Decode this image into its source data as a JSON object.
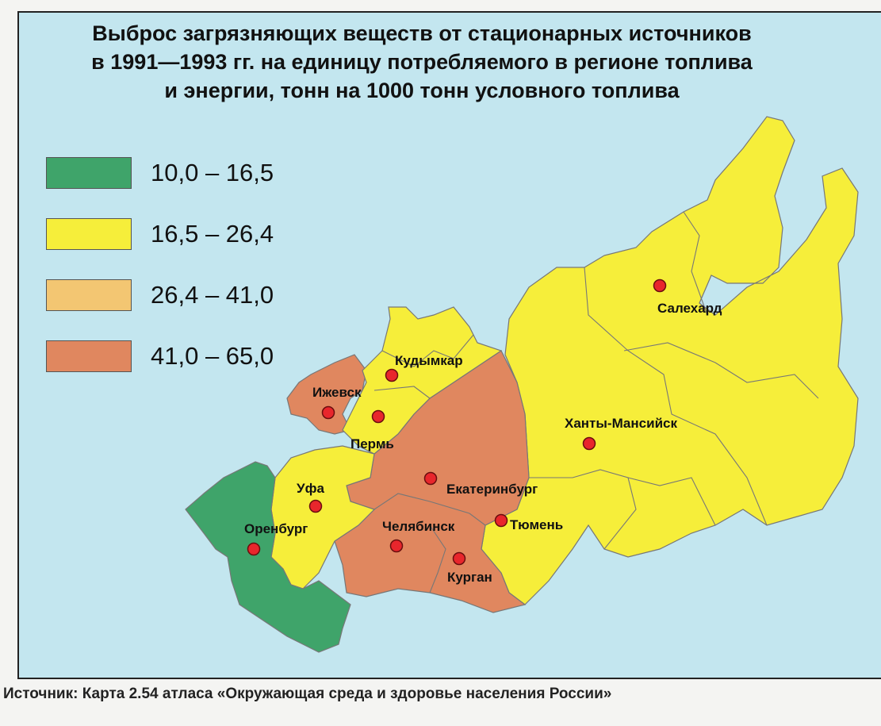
{
  "title": {
    "line1": "Выброс загрязняющих веществ от стационарных источников",
    "line2": "в 1991—1993 гг. на единицу потребляемого в регионе топлива",
    "line3": "и энергии, тонн на 1000 тонн условного топлива"
  },
  "legend": [
    {
      "label": "10,0 – 16,5",
      "color": "#3fa46a"
    },
    {
      "label": "16,5 – 26,4",
      "color": "#f6ee3a"
    },
    {
      "label": "26,4 – 41,0",
      "color": "#f3c672"
    },
    {
      "label": "41,0 – 65,0",
      "color": "#e0875f"
    }
  ],
  "cities": {
    "salekhard": "Салехард",
    "kudymkar": "Кудымкар",
    "izhevsk": "Ижевск",
    "perm": "Пермь",
    "khanty": "Ханты-Мансийск",
    "ufa": "Уфа",
    "ekaterinburg": "Екатеринбург",
    "orenburg": "Оренбург",
    "chelyabinsk": "Челябинск",
    "tyumen": "Тюмень",
    "kurgan": "Курган"
  },
  "source": "Источник: Карта 2.54 атласа «Окружающая среда и здоровье населения России»",
  "colors": {
    "water": "#c3e6ef",
    "city_marker": "#e8262c"
  }
}
